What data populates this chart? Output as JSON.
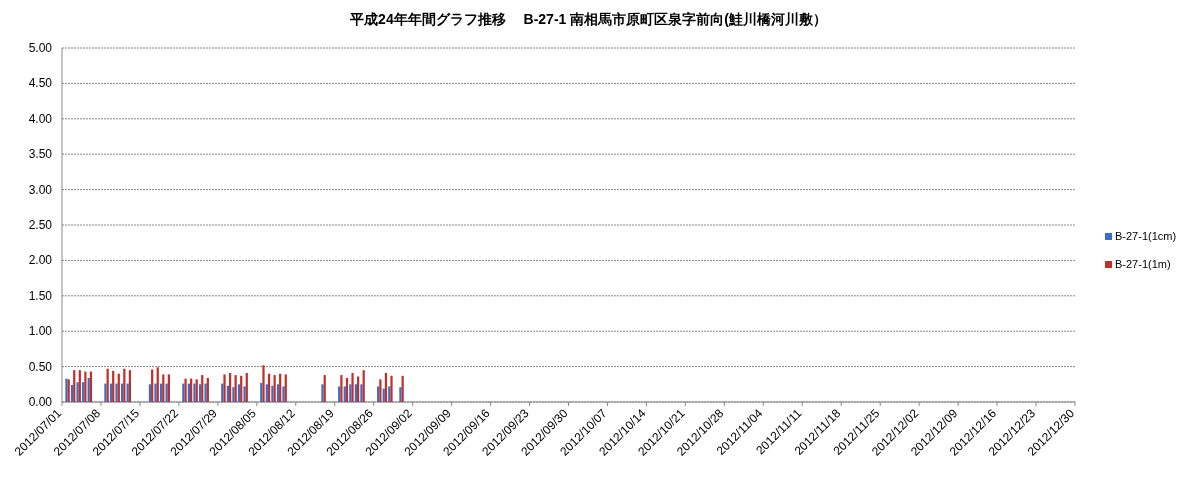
{
  "chart_data": {
    "type": "bar",
    "title": "平成24年年間グラフ推移　 B-27-1 南相馬市原町区泉字前向(鮭川橋河川敷）",
    "x": [
      "2012-07-02",
      "2012-07-03",
      "2012-07-04",
      "2012-07-05",
      "2012-07-06",
      "2012-07-09",
      "2012-07-10",
      "2012-07-11",
      "2012-07-12",
      "2012-07-13",
      "2012-07-17",
      "2012-07-18",
      "2012-07-19",
      "2012-07-20",
      "2012-07-23",
      "2012-07-24",
      "2012-07-25",
      "2012-07-26",
      "2012-07-27",
      "2012-07-30",
      "2012-07-31",
      "2012-08-01",
      "2012-08-02",
      "2012-08-03",
      "2012-08-06",
      "2012-08-07",
      "2012-08-08",
      "2012-08-09",
      "2012-08-10",
      "2012-08-17",
      "2012-08-20",
      "2012-08-21",
      "2012-08-22",
      "2012-08-23",
      "2012-08-24",
      "2012-08-27",
      "2012-08-28",
      "2012-08-29",
      "2012-08-31"
    ],
    "series": [
      {
        "name": "B-27-1(1cm)",
        "color": "#3a6fc4",
        "values": [
          0.33,
          0.24,
          0.28,
          0.28,
          0.34,
          0.26,
          0.26,
          0.26,
          0.26,
          0.26,
          0.25,
          0.26,
          0.26,
          0.26,
          0.26,
          0.26,
          0.26,
          0.25,
          0.26,
          0.26,
          0.23,
          0.21,
          0.25,
          0.22,
          0.27,
          0.25,
          0.23,
          0.25,
          0.22,
          0.25,
          0.22,
          0.22,
          0.25,
          0.25,
          0.25,
          0.22,
          0.19,
          0.22,
          0.21
        ]
      },
      {
        "name": "B-27-1(1m)",
        "color": "#c0302b",
        "values": [
          0.32,
          0.45,
          0.45,
          0.43,
          0.43,
          0.47,
          0.44,
          0.4,
          0.47,
          0.45,
          0.46,
          0.49,
          0.39,
          0.39,
          0.33,
          0.33,
          0.32,
          0.38,
          0.34,
          0.39,
          0.41,
          0.38,
          0.37,
          0.41,
          0.52,
          0.4,
          0.38,
          0.4,
          0.39,
          0.38,
          0.38,
          0.34,
          0.41,
          0.36,
          0.45,
          0.32,
          0.41,
          0.37,
          0.37
        ]
      }
    ],
    "ylim": [
      0,
      5
    ],
    "yticks": [
      {
        "value": 0,
        "label": "0.00"
      },
      {
        "value": 0.5,
        "label": "0.50"
      },
      {
        "value": 1,
        "label": "1.00"
      },
      {
        "value": 1.5,
        "label": "1.50"
      },
      {
        "value": 2,
        "label": "2.00"
      },
      {
        "value": 2.5,
        "label": "2.50"
      },
      {
        "value": 3,
        "label": "3.00"
      },
      {
        "value": 3.5,
        "label": "3.50"
      },
      {
        "value": 4,
        "label": "4.00"
      },
      {
        "value": 4.5,
        "label": "4.50"
      },
      {
        "value": 5,
        "label": "5.00"
      }
    ],
    "xlim": [
      "2012-07-01",
      "2012-12-30"
    ],
    "xticks": [
      {
        "value": "2012-07-01",
        "label": "2012/07/01"
      },
      {
        "value": "2012-07-08",
        "label": "2012/07/08"
      },
      {
        "value": "2012-07-15",
        "label": "2012/07/15"
      },
      {
        "value": "2012-07-22",
        "label": "2012/07/22"
      },
      {
        "value": "2012-07-29",
        "label": "2012/07/29"
      },
      {
        "value": "2012-08-05",
        "label": "2012/08/05"
      },
      {
        "value": "2012-08-12",
        "label": "2012/08/12"
      },
      {
        "value": "2012-08-19",
        "label": "2012/08/19"
      },
      {
        "value": "2012-08-26",
        "label": "2012/08/26"
      },
      {
        "value": "2012-09-02",
        "label": "2012/09/02"
      },
      {
        "value": "2012-09-09",
        "label": "2012/09/09"
      },
      {
        "value": "2012-09-16",
        "label": "2012/09/16"
      },
      {
        "value": "2012-09-23",
        "label": "2012/09/23"
      },
      {
        "value": "2012-09-30",
        "label": "2012/09/30"
      },
      {
        "value": "2012-10-07",
        "label": "2012/10/07"
      },
      {
        "value": "2012-10-14",
        "label": "2012/10/14"
      },
      {
        "value": "2012-10-21",
        "label": "2012/10/21"
      },
      {
        "value": "2012-10-28",
        "label": "2012/10/28"
      },
      {
        "value": "2012-11-04",
        "label": "2012/11/04"
      },
      {
        "value": "2012-11-11",
        "label": "2012/11/11"
      },
      {
        "value": "2012-11-18",
        "label": "2012/11/18"
      },
      {
        "value": "2012-11-25",
        "label": "2012/11/25"
      },
      {
        "value": "2012-12-02",
        "label": "2012/12/02"
      },
      {
        "value": "2012-12-09",
        "label": "2012/12/09"
      },
      {
        "value": "2012-12-16",
        "label": "2012/12/16"
      },
      {
        "value": "2012-12-23",
        "label": "2012/12/23"
      },
      {
        "value": "2012-12-30",
        "label": "2012/12/30"
      }
    ],
    "grid": "y",
    "legend": "right"
  }
}
